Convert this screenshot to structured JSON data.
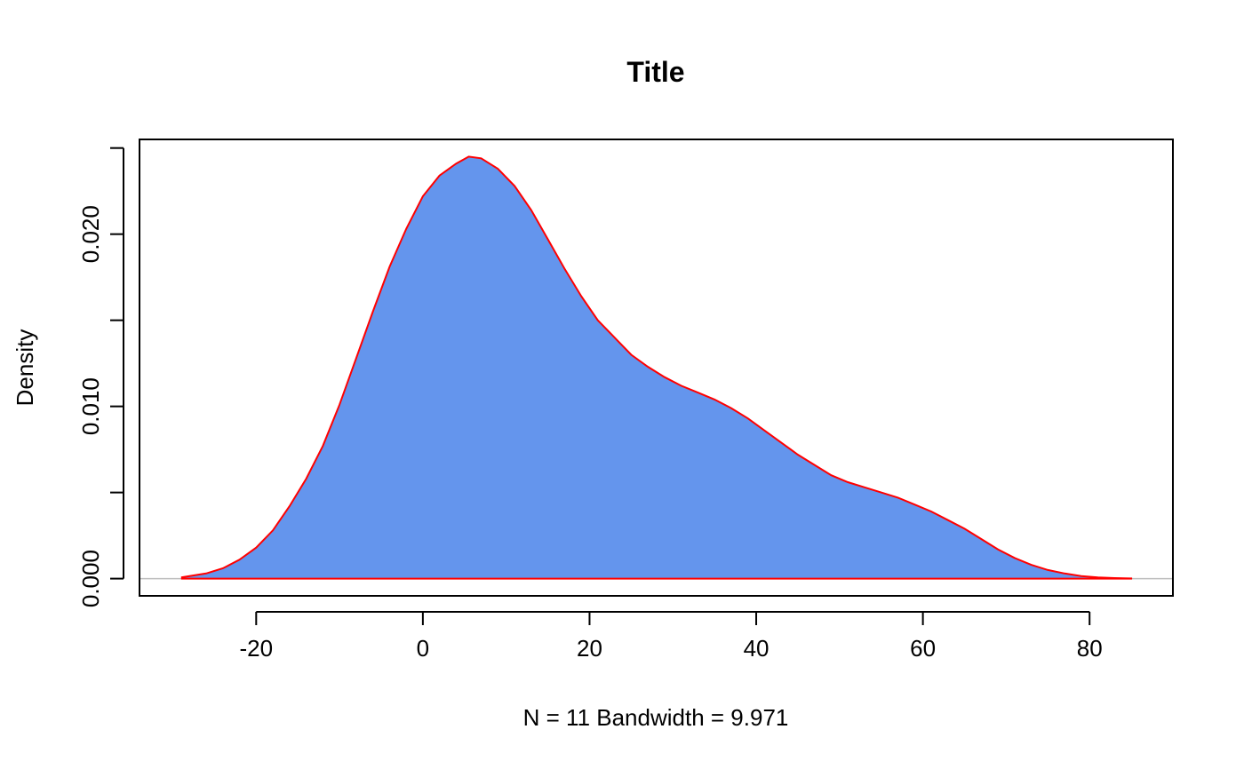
{
  "chart_data": {
    "type": "area",
    "title": "Title",
    "xlabel": "N = 11   Bandwidth = 9.971",
    "ylabel": "Density",
    "xlim": [
      -34,
      90
    ],
    "ylim": [
      -0.001,
      0.0255
    ],
    "x_ticks": [
      -20,
      0,
      20,
      40,
      60,
      80
    ],
    "x_tick_labels": [
      "-20",
      "0",
      "20",
      "40",
      "60",
      "80"
    ],
    "y_ticks": [
      0,
      0.005,
      0.01,
      0.015,
      0.02,
      0.025
    ],
    "y_tick_labels": [
      "0.000",
      "",
      "0.010",
      "",
      "0.020",
      ""
    ],
    "grid": false,
    "legend": "none",
    "zero_line_color": "#bebebe",
    "series": [
      {
        "fill_color": "#6495ed",
        "line_color": "#ff0000",
        "x": [
          -28.9,
          -26,
          -24,
          -22,
          -20,
          -18,
          -16,
          -14,
          -12,
          -10,
          -8,
          -6,
          -4,
          -2,
          0,
          2,
          4,
          5.5,
          7,
          9,
          11,
          13,
          15,
          17,
          19,
          21,
          23,
          25,
          27,
          29,
          31,
          33,
          35,
          37,
          39,
          41,
          43,
          45,
          47,
          49,
          51,
          53,
          55,
          57,
          59,
          61,
          63,
          65,
          67,
          69,
          71,
          73,
          75,
          77,
          79,
          81,
          83,
          85
        ],
        "y": [
          8e-05,
          0.0003,
          0.0006,
          0.0011,
          0.0018,
          0.0028,
          0.0042,
          0.0058,
          0.0077,
          0.0101,
          0.0128,
          0.0155,
          0.0181,
          0.0203,
          0.0222,
          0.0234,
          0.0241,
          0.0245,
          0.0244,
          0.0238,
          0.0228,
          0.0214,
          0.0197,
          0.018,
          0.0164,
          0.015,
          0.014,
          0.013,
          0.0123,
          0.0117,
          0.0112,
          0.0108,
          0.0104,
          0.0099,
          0.0093,
          0.0086,
          0.0079,
          0.0072,
          0.0066,
          0.006,
          0.0056,
          0.0053,
          0.005,
          0.0047,
          0.0043,
          0.0039,
          0.0034,
          0.0029,
          0.0023,
          0.0017,
          0.0012,
          0.0008,
          0.0005,
          0.0003,
          0.00015,
          7e-05,
          3e-05,
          1e-05
        ]
      }
    ]
  }
}
